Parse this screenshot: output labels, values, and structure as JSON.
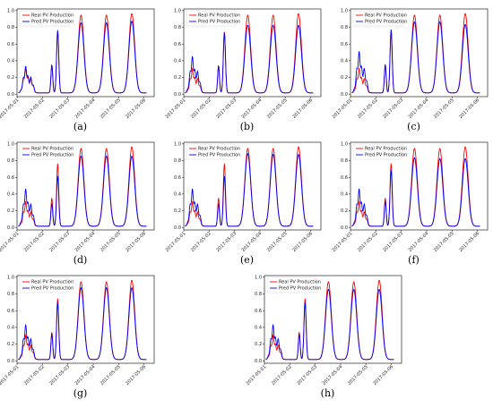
{
  "chart_data": [
    {
      "type": "line",
      "caption": "(a)",
      "x_ticks": [
        "2017-05-01",
        "2017-05-02",
        "2017-05-03",
        "2017-05-04",
        "2017-05-05",
        "2017-05-06"
      ],
      "y_ticks": [
        "0.0",
        "0.2",
        "0.4",
        "0.6",
        "0.8",
        "1.0"
      ],
      "xlim": [
        0,
        5.4
      ],
      "ylim": [
        -0.03,
        1.02
      ],
      "legend": "upper-left",
      "series": [
        {
          "name": "Real PV Production",
          "color": "#ff0000",
          "peaks": [
            0.29,
            0.73,
            0.93,
            0.93,
            0.95
          ]
        },
        {
          "name": "Pred PV Production",
          "color": "#0000ff",
          "peaks": [
            0.32,
            0.75,
            0.84,
            0.84,
            0.86
          ]
        }
      ]
    },
    {
      "type": "line",
      "caption": "(b)",
      "x_ticks": [
        "2017-05-01",
        "2017-05-02",
        "2017-05-03",
        "2017-05-04",
        "2017-05-05",
        "2017-05-06"
      ],
      "y_ticks": [
        "0.0",
        "0.2",
        "0.4",
        "0.6",
        "0.8",
        "1.0"
      ],
      "xlim": [
        0,
        5.4
      ],
      "ylim": [
        -0.03,
        1.02
      ],
      "legend": "upper-left",
      "series": [
        {
          "name": "Real PV Production",
          "color": "#ff0000",
          "peaks": [
            0.29,
            0.73,
            0.93,
            0.93,
            0.95
          ]
        },
        {
          "name": "Pred PV Production",
          "color": "#0000ff",
          "peaks": [
            0.44,
            0.72,
            0.81,
            0.81,
            0.81
          ]
        }
      ]
    },
    {
      "type": "line",
      "caption": "(c)",
      "x_ticks": [
        "2017-05-01",
        "2017-05-02",
        "2017-05-03",
        "2017-05-04",
        "2017-05-05",
        "2017-05-06"
      ],
      "y_ticks": [
        "0.0",
        "0.2",
        "0.4",
        "0.6",
        "0.8",
        "1.0"
      ],
      "xlim": [
        0,
        5.4
      ],
      "ylim": [
        -0.03,
        1.02
      ],
      "legend": "upper-left",
      "series": [
        {
          "name": "Real PV Production",
          "color": "#ff0000",
          "peaks": [
            0.29,
            0.73,
            0.93,
            0.93,
            0.95
          ]
        },
        {
          "name": "Pred PV Production",
          "color": "#0000ff",
          "peaks": [
            0.5,
            0.76,
            0.85,
            0.85,
            0.82
          ]
        }
      ]
    },
    {
      "type": "line",
      "caption": "(d)",
      "x_ticks": [
        "2017-05-01",
        "2017-05-02",
        "2017-05-03",
        "2017-05-04",
        "2017-05-05",
        "2017-05-06"
      ],
      "y_ticks": [
        "0.0",
        "0.2",
        "0.4",
        "0.6",
        "0.8",
        "1.0"
      ],
      "xlim": [
        0,
        5.4
      ],
      "ylim": [
        -0.03,
        1.02
      ],
      "legend": "upper-left",
      "series": [
        {
          "name": "Real PV Production",
          "color": "#ff0000",
          "peaks": [
            0.29,
            0.75,
            0.93,
            0.93,
            0.95
          ]
        },
        {
          "name": "Pred PV Production",
          "color": "#0000ff",
          "peaks": [
            0.45,
            0.6,
            0.84,
            0.84,
            0.84
          ]
        }
      ]
    },
    {
      "type": "line",
      "caption": "(e)",
      "x_ticks": [
        "2017-05-01",
        "2017-05-02",
        "2017-05-03",
        "2017-05-04",
        "2017-05-05",
        "2017-05-06"
      ],
      "y_ticks": [
        "0.0",
        "0.2",
        "0.4",
        "0.6",
        "0.8",
        "1.0"
      ],
      "xlim": [
        0,
        5.4
      ],
      "ylim": [
        -0.03,
        1.02
      ],
      "legend": "upper-left",
      "series": [
        {
          "name": "Real PV Production",
          "color": "#ff0000",
          "peaks": [
            0.29,
            0.75,
            0.93,
            0.93,
            0.95
          ]
        },
        {
          "name": "Pred PV Production",
          "color": "#0000ff",
          "peaks": [
            0.45,
            0.6,
            0.87,
            0.86,
            0.86
          ]
        }
      ]
    },
    {
      "type": "line",
      "caption": "(f)",
      "x_ticks": [
        "2017-05-01",
        "2017-05-02",
        "2017-05-03",
        "2017-05-04",
        "2017-05-05",
        "2017-05-06"
      ],
      "y_ticks": [
        "0.0",
        "0.2",
        "0.4",
        "0.6",
        "0.8",
        "1.0"
      ],
      "xlim": [
        0,
        5.4
      ],
      "ylim": [
        -0.03,
        1.02
      ],
      "legend": "upper-left",
      "series": [
        {
          "name": "Real PV Production",
          "color": "#ff0000",
          "peaks": [
            0.29,
            0.75,
            0.93,
            0.93,
            0.95
          ]
        },
        {
          "name": "Pred PV Production",
          "color": "#0000ff",
          "peaks": [
            0.45,
            0.67,
            0.82,
            0.81,
            0.81
          ]
        }
      ]
    },
    {
      "type": "line",
      "caption": "(g)",
      "x_ticks": [
        "2017-05-01",
        "2017-05-02",
        "2017-05-03",
        "2017-05-04",
        "2017-05-05",
        "2017-05-06"
      ],
      "y_ticks": [
        "0.0",
        "0.2",
        "0.4",
        "0.6",
        "0.8",
        "1.0"
      ],
      "xlim": [
        0,
        5.4
      ],
      "ylim": [
        -0.03,
        1.02
      ],
      "legend": "upper-left",
      "series": [
        {
          "name": "Real PV Production",
          "color": "#ff0000",
          "peaks": [
            0.29,
            0.73,
            0.93,
            0.93,
            0.95
          ]
        },
        {
          "name": "Pred PV Production",
          "color": "#0000ff",
          "peaks": [
            0.42,
            0.68,
            0.86,
            0.86,
            0.86
          ]
        }
      ]
    },
    {
      "type": "line",
      "caption": "(h)",
      "x_ticks": [
        "2017-05-01",
        "2017-05-02",
        "2017-05-03",
        "2017-05-04",
        "2017-05-05",
        "2017-05-06"
      ],
      "y_ticks": [
        "0.0",
        "0.2",
        "0.4",
        "0.6",
        "0.8",
        "1.0"
      ],
      "xlim": [
        0,
        5.4
      ],
      "ylim": [
        -0.03,
        1.02
      ],
      "legend": "upper-left",
      "series": [
        {
          "name": "Real PV Production",
          "color": "#ff0000",
          "peaks": [
            0.29,
            0.73,
            0.93,
            0.93,
            0.95
          ]
        },
        {
          "name": "Pred PV Production",
          "color": "#0000ff",
          "peaks": [
            0.42,
            0.68,
            0.84,
            0.84,
            0.84
          ]
        }
      ]
    }
  ]
}
